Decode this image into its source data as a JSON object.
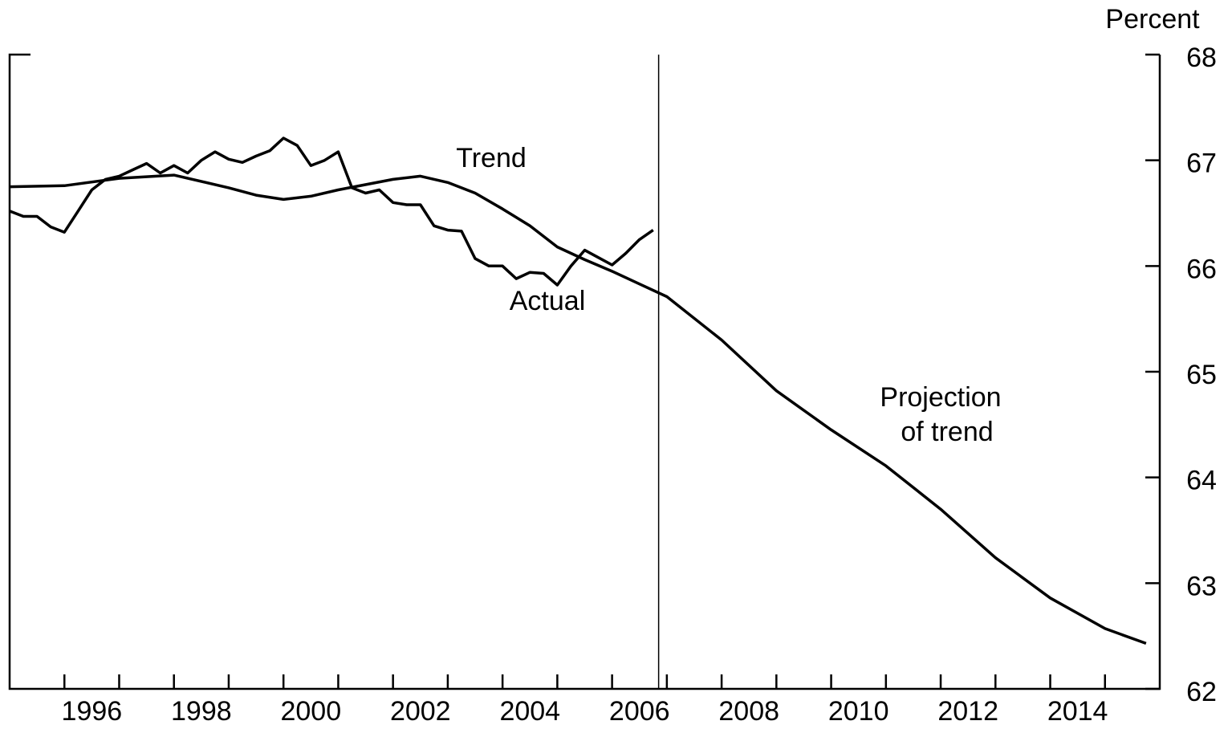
{
  "chart_data": {
    "type": "line",
    "y_axis_label": "Percent",
    "annotations": [
      "Trend",
      "Actual",
      "Projection",
      "of trend"
    ],
    "xlim": [
      1995,
      2016
    ],
    "ylim": [
      62,
      68
    ],
    "yticks": [
      62,
      63,
      64,
      65,
      66,
      67,
      68
    ],
    "xticks": [
      {
        "value": 1996.5,
        "label": "1996"
      },
      {
        "value": 1998.5,
        "label": "1998"
      },
      {
        "value": 2000.5,
        "label": "2000"
      },
      {
        "value": 2002.5,
        "label": "2002"
      },
      {
        "value": 2004.5,
        "label": "2004"
      },
      {
        "value": 2006.5,
        "label": "2006"
      },
      {
        "value": 2008.5,
        "label": "2008"
      },
      {
        "value": 2010.5,
        "label": "2010"
      },
      {
        "value": 2012.5,
        "label": "2012"
      },
      {
        "value": 2014.5,
        "label": "2014"
      }
    ],
    "xminor": [
      1996,
      1997,
      1998,
      1999,
      2000,
      2001,
      2002,
      2003,
      2004,
      2005,
      2006,
      2007,
      2008,
      2009,
      2010,
      2011,
      2012,
      2013,
      2014,
      2015
    ],
    "vline": 2006.85,
    "series": [
      {
        "name": "Actual",
        "color": "#000000",
        "x": [
          1995,
          1995.25,
          1995.5,
          1995.75,
          1996,
          1996.25,
          1996.5,
          1996.75,
          1997,
          1997.25,
          1997.5,
          1997.75,
          1998,
          1998.25,
          1998.5,
          1998.75,
          1999,
          1999.25,
          1999.5,
          1999.75,
          2000,
          2000.25,
          2000.5,
          2000.75,
          2001,
          2001.25,
          2001.5,
          2001.75,
          2002,
          2002.25,
          2002.5,
          2002.75,
          2003,
          2003.25,
          2003.5,
          2003.75,
          2004,
          2004.25,
          2004.5,
          2004.75,
          2005,
          2005.25,
          2005.5,
          2005.75,
          2006,
          2006.25,
          2006.5,
          2006.75
        ],
        "values": [
          66.52,
          66.47,
          66.47,
          66.37,
          66.32,
          66.52,
          66.72,
          66.82,
          66.85,
          66.91,
          66.97,
          66.88,
          66.95,
          66.88,
          67.0,
          67.08,
          67.01,
          66.98,
          67.04,
          67.09,
          67.21,
          67.14,
          66.95,
          67.0,
          67.08,
          66.74,
          66.69,
          66.72,
          66.6,
          66.58,
          66.58,
          66.38,
          66.34,
          66.33,
          66.07,
          66.0,
          66.0,
          65.88,
          65.94,
          65.93,
          65.82,
          66.0,
          66.15,
          66.08,
          66.01,
          66.12,
          66.25,
          66.34
        ]
      },
      {
        "name": "Trend",
        "color": "#000000",
        "x": [
          1995,
          1996,
          1997,
          1998,
          1999,
          1999.5,
          2000,
          2000.5,
          2001,
          2002,
          2002.5,
          2003,
          2003.5,
          2004,
          2004.5,
          2005,
          2005.5,
          2006,
          2006.5,
          2007,
          2008,
          2009,
          2010,
          2011,
          2012,
          2013,
          2014,
          2015,
          2015.75
        ],
        "values": [
          66.75,
          66.76,
          66.83,
          66.86,
          66.74,
          66.67,
          66.63,
          66.66,
          66.72,
          66.82,
          66.85,
          66.79,
          66.69,
          66.54,
          66.38,
          66.18,
          66.06,
          65.95,
          65.83,
          65.71,
          65.3,
          64.82,
          64.45,
          64.11,
          63.7,
          63.24,
          62.86,
          62.57,
          62.43
        ]
      }
    ]
  }
}
